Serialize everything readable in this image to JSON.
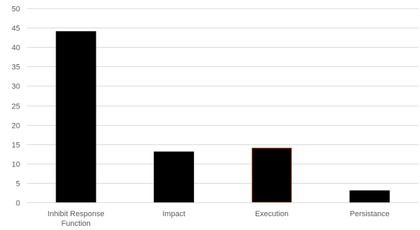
{
  "chart_data": {
    "type": "bar",
    "categories": [
      [
        "Inhibit Response",
        "Function"
      ],
      [
        "Impact"
      ],
      [
        "Execution"
      ],
      [
        "Persistance"
      ]
    ],
    "values": [
      44,
      13,
      14,
      3
    ],
    "ylim": [
      0,
      50
    ],
    "y_ticks": [
      0,
      5,
      10,
      15,
      20,
      25,
      30,
      35,
      40,
      45,
      50
    ],
    "grid": true,
    "legend": "none",
    "colors": {
      "bar_fill": "#000000",
      "bar_outline": [
        "#000000",
        "#000000",
        "#C55A11",
        "#000000"
      ],
      "grid": "#D9D9D9",
      "axis": "#D9D9D9",
      "text": "#595959"
    }
  }
}
